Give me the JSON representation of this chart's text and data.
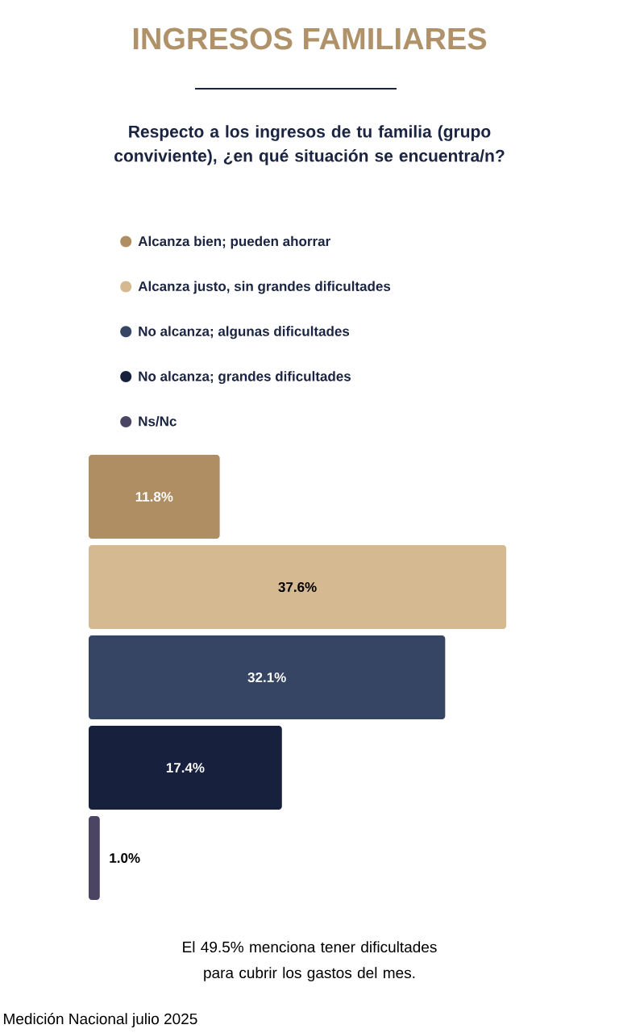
{
  "chart_data": {
    "type": "bar",
    "orientation": "horizontal",
    "title": "INGRESOS FAMILIARES",
    "subtitle": "Respecto a los ingresos de tu familia (grupo conviviente), ¿en qué situación se encuentra/n?",
    "categories": [
      null
    ],
    "series": [
      {
        "name": "Alcanza bien; pueden ahorrar",
        "color": "#b08e64",
        "values": [
          11.8
        ],
        "value_labels": [
          "11.8%"
        ]
      },
      {
        "name": "Alcanza justo, sin grandes dificultades",
        "color": "#d5b991",
        "values": [
          37.6
        ],
        "value_labels": [
          "37.6%"
        ]
      },
      {
        "name": "No alcanza; algunas dificultades",
        "color": "#364563",
        "values": [
          32.1
        ],
        "value_labels": [
          "32.1%"
        ]
      },
      {
        "name": "No alcanza; grandes dificultades",
        "color": "#17203d",
        "values": [
          17.4
        ],
        "value_labels": [
          "17.4%"
        ]
      },
      {
        "name": "Ns/Nc",
        "color": "#4b4563",
        "values": [
          1.0
        ],
        "value_labels": [
          "1.0%"
        ]
      }
    ],
    "legend": "top",
    "annotations": [
      "El 49.5% menciona tener dificultades para cubrir los gastos del mes.",
      "Medición Nacional julio 2025"
    ]
  }
}
